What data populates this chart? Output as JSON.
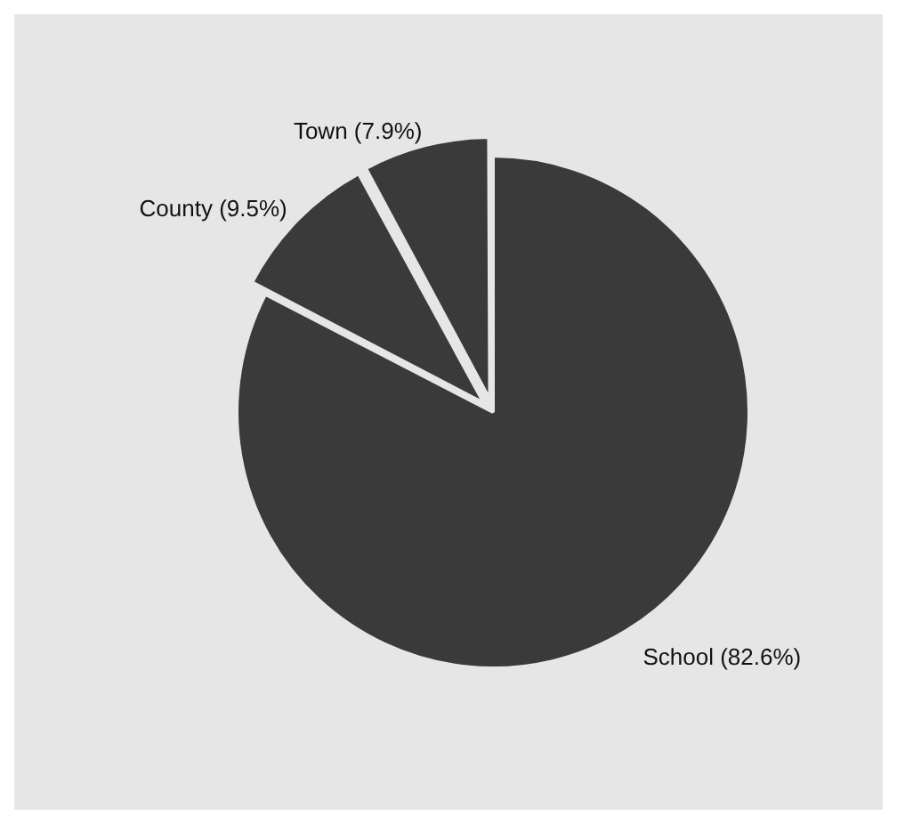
{
  "chart_data": {
    "type": "pie",
    "categories": [
      "School (82.6%)",
      "County (9.5%)",
      "Town (7.9%)"
    ],
    "values": [
      82.6,
      9.5,
      7.9
    ],
    "colors": [
      "#3a3a3a",
      "#3a3a3a",
      "#3a3a3a"
    ],
    "legend": false
  }
}
